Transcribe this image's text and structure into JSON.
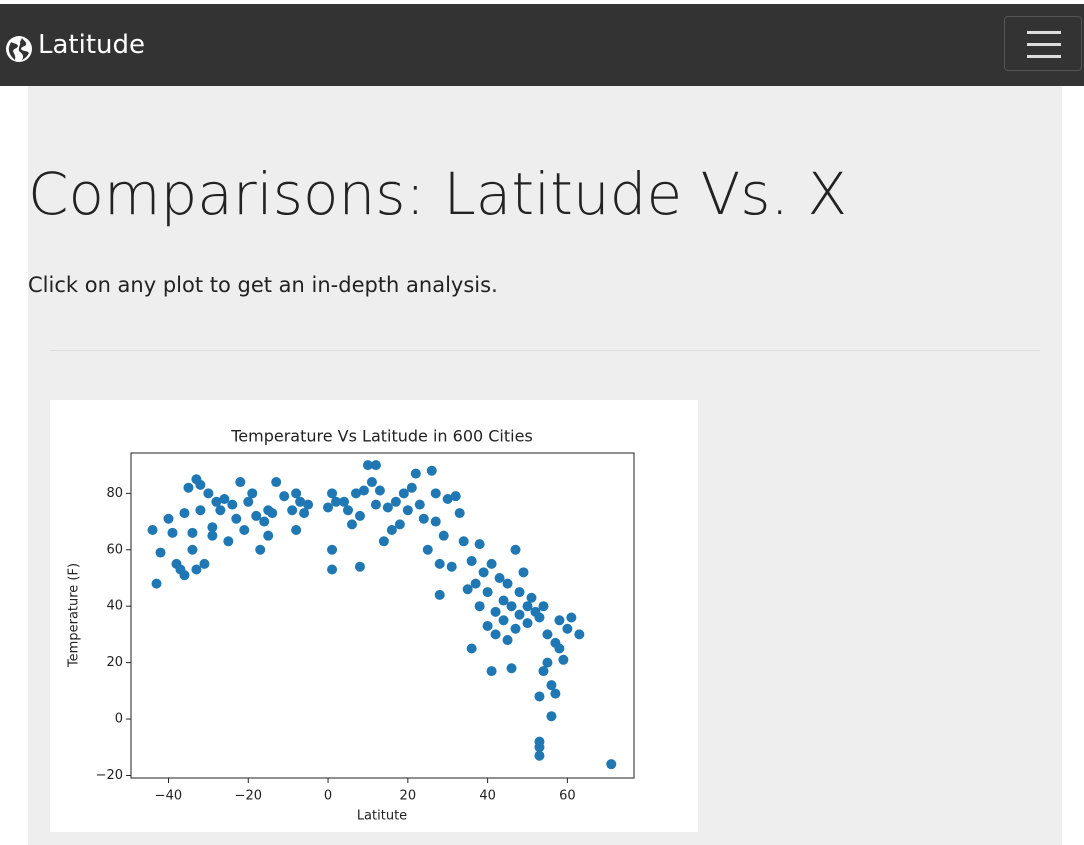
{
  "navbar": {
    "brand": "Latitude"
  },
  "header": {
    "title": "Comparisons: Latitude Vs. X",
    "text": "Click on any plot to get an in-depth analysis."
  },
  "chart_data": {
    "type": "scatter",
    "title": "Temperature Vs Latitude in 600 Cities",
    "x_label": "Latitute",
    "y_label": "Temperature (F)",
    "color": "#1f77b4",
    "grid": false,
    "xlim": [
      -49.4,
      76.7
    ],
    "ylim": [
      -20.9,
      94.3
    ],
    "xticks": [
      {
        "value": -40,
        "label": "−40"
      },
      {
        "value": -20,
        "label": "−20"
      },
      0,
      20,
      40,
      60
    ],
    "yticks": [
      {
        "value": -20,
        "label": "−20"
      },
      0,
      20,
      40,
      60,
      80
    ],
    "x": [
      -44,
      -43,
      -42,
      -40,
      -39,
      -38,
      -37,
      -36,
      -36,
      -35,
      -34,
      -34,
      -33,
      -33,
      -32,
      -32,
      -31,
      -30,
      -29,
      -29,
      -28,
      -27,
      -26,
      -25,
      -24,
      -23,
      -22,
      -21,
      -20,
      -19,
      -18,
      -17,
      -16,
      -15,
      -15,
      -14,
      -13,
      -11,
      -9,
      -8,
      -8,
      -7,
      -6,
      -5,
      0,
      1,
      1,
      1,
      2,
      4,
      5,
      6,
      7,
      8,
      8,
      9,
      10,
      11,
      12,
      12,
      13,
      14,
      15,
      16,
      17,
      18,
      19,
      20,
      21,
      22,
      23,
      24,
      25,
      26,
      27,
      27,
      28,
      28,
      29,
      30,
      31,
      32,
      33,
      34,
      35,
      36,
      36,
      37,
      38,
      38,
      39,
      40,
      40,
      41,
      41,
      42,
      42,
      43,
      44,
      44,
      45,
      45,
      46,
      46,
      47,
      47,
      48,
      48,
      49,
      50,
      50,
      51,
      52,
      53,
      53,
      53,
      53,
      53,
      54,
      54,
      55,
      55,
      56,
      56,
      57,
      57,
      58,
      58,
      59,
      60,
      61,
      63,
      71
    ],
    "y": [
      67,
      48,
      59,
      71,
      66,
      55,
      53,
      51,
      73,
      82,
      66,
      60,
      85,
      53,
      83,
      74,
      55,
      80,
      68,
      65,
      77,
      74,
      78,
      63,
      76,
      71,
      84,
      67,
      77,
      80,
      72,
      60,
      70,
      65,
      74,
      73,
      84,
      79,
      74,
      67,
      80,
      77,
      73,
      76,
      75,
      80,
      60,
      53,
      77,
      77,
      74,
      69,
      80,
      54,
      72,
      81,
      90,
      84,
      90,
      76,
      81,
      63,
      75,
      67,
      77,
      69,
      80,
      74,
      82,
      87,
      76,
      71,
      60,
      88,
      80,
      70,
      55,
      44,
      65,
      78,
      54,
      79,
      73,
      63,
      46,
      25,
      56,
      48,
      62,
      40,
      52,
      45,
      33,
      17,
      55,
      38,
      30,
      50,
      42,
      35,
      48,
      28,
      18,
      40,
      60,
      32,
      45,
      37,
      52,
      40,
      34,
      43,
      38,
      36,
      8,
      -8,
      -10,
      -13,
      40,
      17,
      20,
      30,
      12,
      1,
      27,
      9,
      25,
      35,
      21,
      32,
      36,
      30,
      -16
    ]
  }
}
